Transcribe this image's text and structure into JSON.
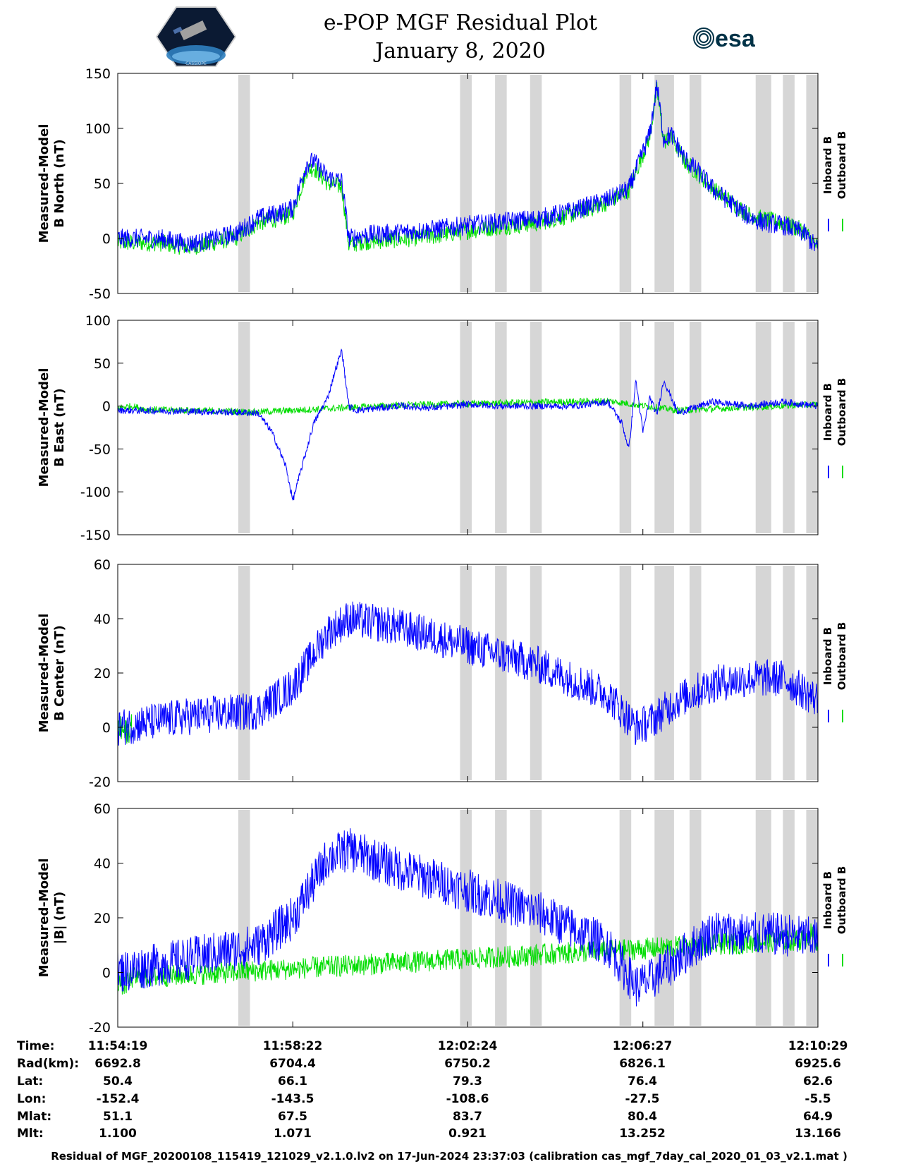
{
  "header": {
    "title_line1": "e-POP MGF Residual Plot",
    "title_line2": "January 8, 2020",
    "logo_left_text": "CASSIOPE",
    "logo_right_text": "esa"
  },
  "colors": {
    "inboard": "#0000ff",
    "outboard": "#00dd00",
    "gap": "#d6d6d6",
    "esa": "#003247"
  },
  "chart_data": [
    {
      "type": "line",
      "name": "B North",
      "ylabel_line1": "Measured-Model",
      "ylabel_line2": "B North (nT)",
      "ylim": [
        -50,
        150
      ],
      "yticks": [
        "150",
        "100",
        "50",
        "0",
        "-50"
      ],
      "yticks_values": [
        150,
        100,
        50,
        0,
        -50
      ],
      "legend": [
        "Inboard B",
        "Outboard B"
      ],
      "series": [
        {
          "name": "Inboard B",
          "x": [
            0,
            0.06,
            0.1,
            0.13,
            0.17,
            0.2,
            0.24,
            0.25,
            0.27,
            0.28,
            0.3,
            0.32,
            0.33,
            0.35,
            0.4,
            0.45,
            0.5,
            0.55,
            0.6,
            0.65,
            0.7,
            0.73,
            0.76,
            0.77,
            0.78,
            0.79,
            0.81,
            0.83,
            0.85,
            0.87,
            0.9,
            0.92,
            0.95,
            0.98,
            1
          ],
          "values": [
            0,
            0,
            -5,
            -2,
            5,
            18,
            25,
            28,
            68,
            70,
            55,
            52,
            0,
            3,
            5,
            8,
            12,
            15,
            18,
            25,
            35,
            45,
            95,
            140,
            90,
            95,
            72,
            60,
            45,
            35,
            20,
            15,
            12,
            5,
            -10
          ],
          "noise": 9
        },
        {
          "name": "Outboard B",
          "x": [
            0,
            0.06,
            0.1,
            0.13,
            0.17,
            0.2,
            0.24,
            0.25,
            0.27,
            0.28,
            0.3,
            0.32,
            0.33,
            0.35,
            0.4,
            0.45,
            0.5,
            0.55,
            0.6,
            0.65,
            0.7,
            0.73,
            0.76,
            0.77,
            0.78,
            0.79,
            0.81,
            0.83,
            0.85,
            0.87,
            0.9,
            0.92,
            0.95,
            0.98,
            1
          ],
          "values": [
            -4,
            -4,
            -8,
            -5,
            1,
            14,
            20,
            23,
            62,
            64,
            50,
            47,
            -6,
            -3,
            -1,
            2,
            7,
            11,
            14,
            22,
            33,
            44,
            93,
            136,
            88,
            92,
            70,
            58,
            45,
            36,
            22,
            18,
            14,
            7,
            -8
          ],
          "noise": 8
        }
      ]
    },
    {
      "type": "line",
      "name": "B East",
      "ylabel_line1": "Measured-Model",
      "ylabel_line2": "B East (nT)",
      "ylim": [
        -150,
        100
      ],
      "yticks": [
        "100",
        "50",
        "0",
        "-50",
        "-100",
        "-150"
      ],
      "yticks_values": [
        100,
        50,
        0,
        -50,
        -100,
        -150
      ],
      "legend": [
        "Inboard B",
        "Outboard B"
      ],
      "series": [
        {
          "name": "Inboard B",
          "x": [
            0,
            0.1,
            0.2,
            0.22,
            0.24,
            0.25,
            0.26,
            0.27,
            0.28,
            0.29,
            0.3,
            0.31,
            0.32,
            0.33,
            0.34,
            0.4,
            0.45,
            0.5,
            0.55,
            0.6,
            0.65,
            0.7,
            0.72,
            0.73,
            0.74,
            0.75,
            0.76,
            0.77,
            0.78,
            0.8,
            0.85,
            0.9,
            0.95,
            1
          ],
          "values": [
            -5,
            -6,
            -8,
            -30,
            -70,
            -110,
            -80,
            -50,
            -20,
            -5,
            10,
            40,
            65,
            0,
            -5,
            0,
            -2,
            2,
            0,
            0,
            0,
            5,
            -20,
            -50,
            30,
            -30,
            10,
            -10,
            30,
            -8,
            5,
            0,
            5,
            0
          ],
          "noise": 4
        },
        {
          "name": "Outboard B",
          "x": [
            0,
            0.02,
            0.04,
            0.1,
            0.2,
            0.4,
            0.7,
            0.8,
            1
          ],
          "values": [
            -2,
            0,
            -4,
            -5,
            -7,
            1,
            6,
            -5,
            2
          ],
          "noise": 4
        }
      ]
    },
    {
      "type": "line",
      "name": "B Center",
      "ylabel_line1": "Measured-Model",
      "ylabel_line2": "B Center (nT)",
      "ylim": [
        -20,
        60
      ],
      "yticks": [
        "60",
        "40",
        "20",
        "0",
        "-20"
      ],
      "yticks_values": [
        60,
        40,
        20,
        0,
        -20
      ],
      "legend": [
        "Inboard B",
        "Outboard B"
      ],
      "series": [
        {
          "name": "Inboard B",
          "x": [
            0,
            0.1,
            0.2,
            0.25,
            0.3,
            0.33,
            0.4,
            0.5,
            0.6,
            0.7,
            0.74,
            0.76,
            0.8,
            0.85,
            0.9,
            0.95,
            1
          ],
          "values": [
            0,
            4,
            6,
            15,
            35,
            40,
            37,
            30,
            23,
            12,
            0,
            2,
            10,
            16,
            18,
            18,
            10
          ],
          "noise": 7
        },
        {
          "name": "Outboard B",
          "x": [
            0,
            0.01,
            0.02
          ],
          "values": [
            0,
            -2,
            0
          ],
          "noise": 5
        }
      ]
    },
    {
      "type": "line",
      "name": "|B|",
      "ylabel_line1": "Measured-Model",
      "ylabel_line2": "|B| (nT)",
      "ylim": [
        -20,
        60
      ],
      "yticks": [
        "60",
        "40",
        "20",
        "0",
        "-20"
      ],
      "yticks_values": [
        60,
        40,
        20,
        0,
        -20
      ],
      "legend": [
        "Inboard B",
        "Outboard B"
      ],
      "series": [
        {
          "name": "Inboard B",
          "x": [
            0,
            0.1,
            0.2,
            0.25,
            0.3,
            0.33,
            0.4,
            0.5,
            0.6,
            0.7,
            0.74,
            0.76,
            0.8,
            0.85,
            0.9,
            0.95,
            1
          ],
          "values": [
            0,
            5,
            10,
            20,
            42,
            45,
            38,
            30,
            22,
            10,
            -5,
            -3,
            5,
            15,
            14,
            14,
            12
          ],
          "noise": 8
        },
        {
          "name": "Outboard B",
          "x": [
            0,
            0.01,
            0.02,
            0.98,
            0.99,
            1
          ],
          "values": [
            -3,
            -5,
            -2,
            12,
            14,
            11
          ],
          "noise": 4
        }
      ]
    }
  ],
  "gaps": [
    [
      0.285,
      0.3
    ],
    [
      0.57,
      0.585
    ],
    [
      0.615,
      0.63
    ],
    [
      0.66,
      0.675
    ],
    [
      0.775,
      0.79
    ],
    [
      0.82,
      0.845
    ],
    [
      0.865,
      0.88
    ],
    [
      0.95,
      0.97
    ],
    [
      0.985,
      1.0
    ],
    [
      1.015,
      1.03
    ]
  ],
  "xticks": [
    "11:54:19",
    "11:58:22",
    "12:02:24",
    "12:06:27",
    "12:10:29"
  ],
  "table": {
    "row_labels": [
      "Time:",
      "Rad(km):",
      "Lat:",
      "Lon:",
      "Mlat:",
      "Mlt:"
    ],
    "columns": [
      [
        "11:54:19",
        "6692.8",
        "50.4",
        "-152.4",
        "51.1",
        "1.100"
      ],
      [
        "11:58:22",
        "6704.4",
        "66.1",
        "-143.5",
        "67.5",
        "1.071"
      ],
      [
        "12:02:24",
        "6750.2",
        "79.3",
        "-108.6",
        "83.7",
        "0.921"
      ],
      [
        "12:06:27",
        "6826.1",
        "76.4",
        "-27.5",
        "80.4",
        "13.252"
      ],
      [
        "12:10:29",
        "6925.6",
        "62.6",
        "-5.5",
        "64.9",
        "13.166"
      ]
    ]
  },
  "footer": "Residual of MGF_20200108_115419_121029_v2.1.0.lv2 on 17-Jun-2024 23:37:03 (calibration cas_mgf_7day_cal_2020_01_03_v2.1.mat )"
}
